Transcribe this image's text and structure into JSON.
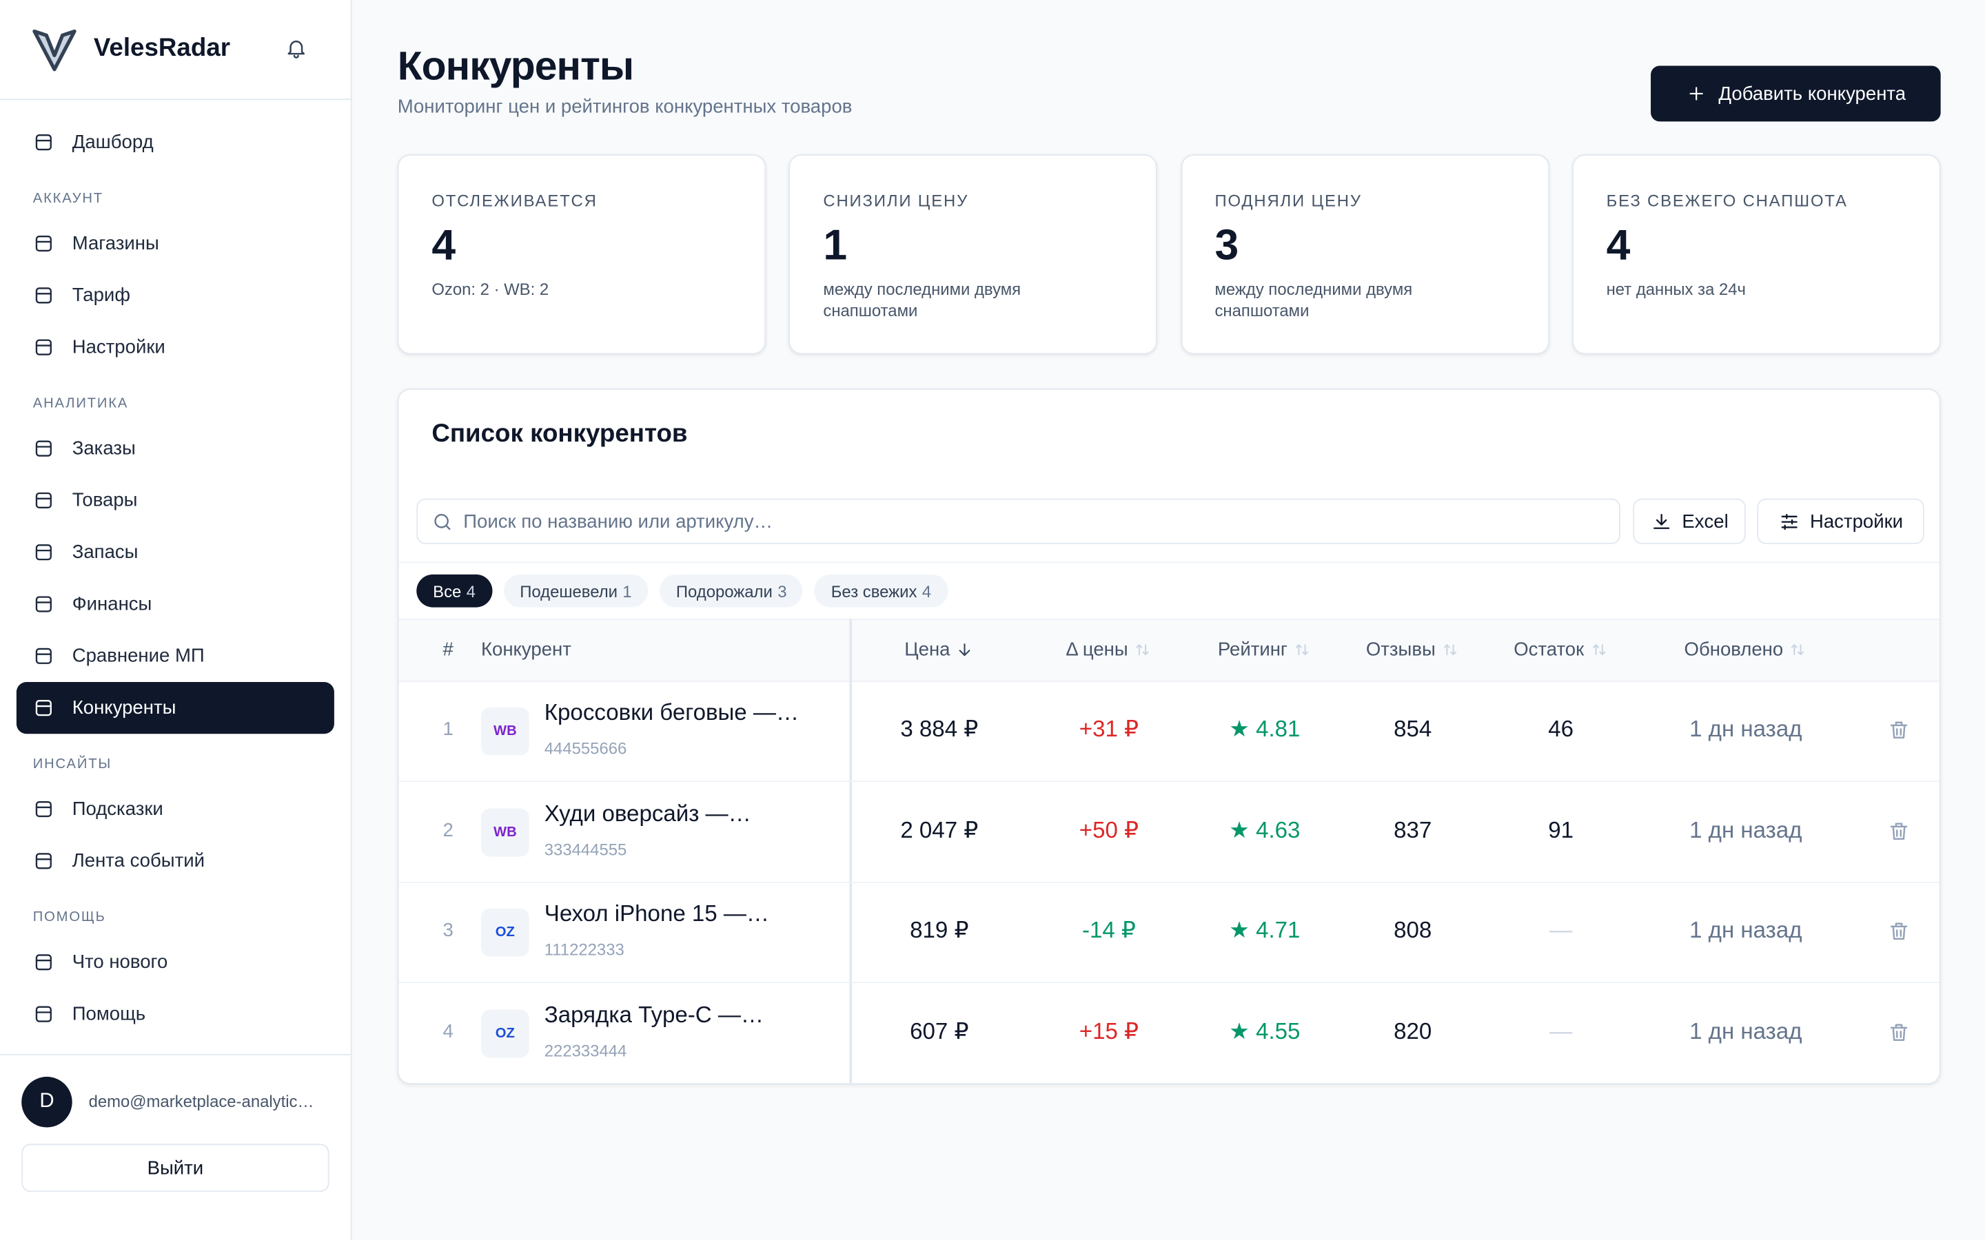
{
  "brand": "VelesRadar",
  "nav": [
    {
      "items": [
        "Дашборд"
      ]
    },
    {
      "title": "АККАУНТ",
      "items": [
        "Магазины",
        "Тариф",
        "Настройки"
      ]
    },
    {
      "title": "АНАЛИТИКА",
      "items": [
        "Заказы",
        "Товары",
        "Запасы",
        "Финансы",
        "Сравнение МП",
        "Конкуренты"
      ]
    },
    {
      "title": "ИНСАЙТЫ",
      "items": [
        "Подсказки",
        "Лента событий"
      ]
    },
    {
      "title": "ПОМОЩЬ",
      "items": [
        "Что нового",
        "Помощь"
      ]
    }
  ],
  "active": "Конкуренты",
  "user": {
    "avatar": "D",
    "email": "demo@marketplace-analytic…",
    "logout": "Выйти"
  },
  "header": {
    "title": "Конкуренты",
    "subtitle": "Мониторинг цен и рейтингов конкурентных товаров",
    "button": "Добавить конкурента"
  },
  "cards": [
    {
      "label": "ОТСЛЕЖИВАЕТСЯ",
      "value": 4,
      "note": "Ozon: 2 · WB: 2"
    },
    {
      "label": "СНИЗИЛИ ЦЕНУ",
      "value": 1,
      "note": "между последними двумя снапшотами"
    },
    {
      "label": "ПОДНЯЛИ ЦЕНУ",
      "value": 3,
      "note": "между последними двумя снапшотами"
    },
    {
      "label": "БЕЗ СВЕЖЕГО СНАПШОТА",
      "value": 4,
      "note": "нет данных за 24ч"
    }
  ],
  "list": {
    "title": "Список конкурентов",
    "search": "Поиск по названию или артикулу…",
    "excel": "Excel",
    "settings": "Настройки",
    "filters": [
      {
        "label": "Все",
        "count": 4
      },
      {
        "label": "Подешевели",
        "count": 1
      },
      {
        "label": "Подорожали",
        "count": 3
      },
      {
        "label": "Без свежих",
        "count": 4
      }
    ],
    "columns": [
      "#",
      "Конкурент",
      "Цена",
      "Δ цены",
      "Рейтинг",
      "Отзывы",
      "Остаток",
      "Обновлено"
    ],
    "rows": [
      {
        "n": 1,
        "mp": "WB",
        "name": "Кроссовки беговые —…",
        "sku": "444555666",
        "price": "3 884 ₽",
        "delta": "+31 ₽",
        "rating": "★ 4.81",
        "reviews": 854,
        "stock": 46,
        "updated": "1 дн назад"
      },
      {
        "n": 2,
        "mp": "WB",
        "name": "Худи оверсайз —…",
        "sku": "333444555",
        "price": "2 047 ₽",
        "delta": "+50 ₽",
        "rating": "★ 4.63",
        "reviews": 837,
        "stock": 91,
        "updated": "1 дн назад"
      },
      {
        "n": 3,
        "mp": "OZ",
        "name": "Чехол iPhone 15 —…",
        "sku": "111222333",
        "price": "819 ₽",
        "delta": "-14 ₽",
        "rating": "★ 4.71",
        "reviews": 808,
        "stock": "—",
        "updated": "1 дн назад"
      },
      {
        "n": 4,
        "mp": "OZ",
        "name": "Зарядка Type-C —…",
        "sku": "222333444",
        "price": "607 ₽",
        "delta": "+15 ₽",
        "rating": "★ 4.55",
        "reviews": 820,
        "stock": "—",
        "updated": "1 дн назад"
      }
    ]
  }
}
